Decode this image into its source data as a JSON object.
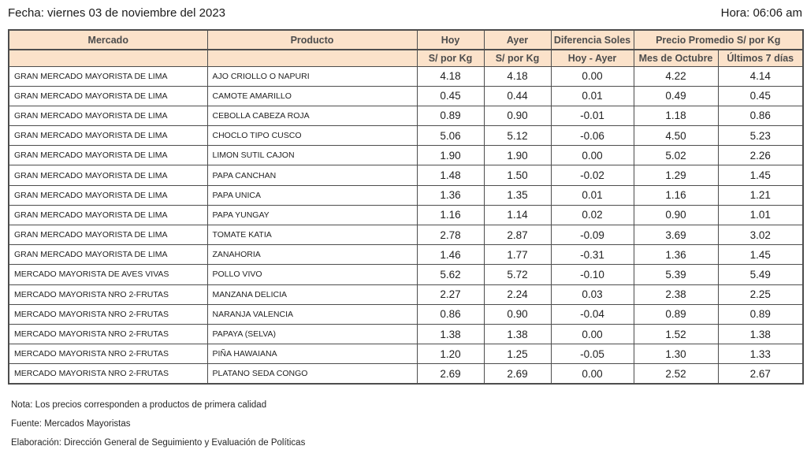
{
  "page": {
    "date_label": "Fecha: viernes 03 de noviembre del 2023",
    "time_label": "Hora: 06:06 am"
  },
  "colors": {
    "header_bg": "#FBE2CA",
    "table_border": "#4D4D4D",
    "header_text": "#4D4D4D"
  },
  "table": {
    "header": {
      "mercado": "Mercado",
      "producto": "Producto",
      "hoy": "Hoy",
      "ayer": "Ayer",
      "diferencia_soles": "Diferencia Soles",
      "precio_promedio": "Precio Promedio S/ por Kg"
    },
    "subheader": {
      "hoy_unit": "S/ por Kg",
      "ayer_unit": "S/ por Kg",
      "diferencia": "Hoy - Ayer",
      "mes_octubre": "Mes de Octubre",
      "ultimos_7_dias": "Últimos 7 días"
    },
    "rows": [
      {
        "mercado": "GRAN MERCADO MAYORISTA DE LIMA",
        "producto": "AJO CRIOLLO O NAPURI",
        "hoy": "4.18",
        "ayer": "4.18",
        "diferencia": "0.00",
        "mes_octubre": "4.22",
        "ultimos_7": "4.14"
      },
      {
        "mercado": "GRAN MERCADO MAYORISTA DE LIMA",
        "producto": "CAMOTE AMARILLO",
        "hoy": "0.45",
        "ayer": "0.44",
        "diferencia": "0.01",
        "mes_octubre": "0.49",
        "ultimos_7": "0.45"
      },
      {
        "mercado": "GRAN MERCADO MAYORISTA DE LIMA",
        "producto": "CEBOLLA CABEZA ROJA",
        "hoy": "0.89",
        "ayer": "0.90",
        "diferencia": "-0.01",
        "mes_octubre": "1.18",
        "ultimos_7": "0.86"
      },
      {
        "mercado": "GRAN MERCADO MAYORISTA DE LIMA",
        "producto": "CHOCLO TIPO CUSCO",
        "hoy": "5.06",
        "ayer": "5.12",
        "diferencia": "-0.06",
        "mes_octubre": "4.50",
        "ultimos_7": "5.23"
      },
      {
        "mercado": "GRAN MERCADO MAYORISTA DE LIMA",
        "producto": "LIMON SUTIL CAJON",
        "hoy": "1.90",
        "ayer": "1.90",
        "diferencia": "0.00",
        "mes_octubre": "5.02",
        "ultimos_7": "2.26"
      },
      {
        "mercado": "GRAN MERCADO MAYORISTA DE LIMA",
        "producto": "PAPA CANCHAN",
        "hoy": "1.48",
        "ayer": "1.50",
        "diferencia": "-0.02",
        "mes_octubre": "1.29",
        "ultimos_7": "1.45"
      },
      {
        "mercado": "GRAN MERCADO MAYORISTA DE LIMA",
        "producto": "PAPA UNICA",
        "hoy": "1.36",
        "ayer": "1.35",
        "diferencia": "0.01",
        "mes_octubre": "1.16",
        "ultimos_7": "1.21"
      },
      {
        "mercado": "GRAN MERCADO MAYORISTA DE LIMA",
        "producto": "PAPA YUNGAY",
        "hoy": "1.16",
        "ayer": "1.14",
        "diferencia": "0.02",
        "mes_octubre": "0.90",
        "ultimos_7": "1.01"
      },
      {
        "mercado": "GRAN MERCADO MAYORISTA DE LIMA",
        "producto": "TOMATE KATIA",
        "hoy": "2.78",
        "ayer": "2.87",
        "diferencia": "-0.09",
        "mes_octubre": "3.69",
        "ultimos_7": "3.02"
      },
      {
        "mercado": "GRAN MERCADO MAYORISTA DE LIMA",
        "producto": "ZANAHORIA",
        "hoy": "1.46",
        "ayer": "1.77",
        "diferencia": "-0.31",
        "mes_octubre": "1.36",
        "ultimos_7": "1.45"
      },
      {
        "mercado": "MERCADO MAYORISTA DE AVES VIVAS",
        "producto": "POLLO VIVO",
        "hoy": "5.62",
        "ayer": "5.72",
        "diferencia": "-0.10",
        "mes_octubre": "5.39",
        "ultimos_7": "5.49"
      },
      {
        "mercado": "MERCADO MAYORISTA NRO 2-FRUTAS",
        "producto": "MANZANA DELICIA",
        "hoy": "2.27",
        "ayer": "2.24",
        "diferencia": "0.03",
        "mes_octubre": "2.38",
        "ultimos_7": "2.25"
      },
      {
        "mercado": "MERCADO MAYORISTA NRO 2-FRUTAS",
        "producto": "NARANJA VALENCIA",
        "hoy": "0.86",
        "ayer": "0.90",
        "diferencia": "-0.04",
        "mes_octubre": "0.89",
        "ultimos_7": "0.89"
      },
      {
        "mercado": "MERCADO MAYORISTA NRO 2-FRUTAS",
        "producto": "PAPAYA (SELVA)",
        "hoy": "1.38",
        "ayer": "1.38",
        "diferencia": "0.00",
        "mes_octubre": "1.52",
        "ultimos_7": "1.38"
      },
      {
        "mercado": "MERCADO MAYORISTA NRO 2-FRUTAS",
        "producto": "PIÑA HAWAIANA",
        "hoy": "1.20",
        "ayer": "1.25",
        "diferencia": "-0.05",
        "mes_octubre": "1.30",
        "ultimos_7": "1.33"
      },
      {
        "mercado": "MERCADO MAYORISTA NRO 2-FRUTAS",
        "producto": "PLATANO SEDA CONGO",
        "hoy": "2.69",
        "ayer": "2.69",
        "diferencia": "0.00",
        "mes_octubre": "2.52",
        "ultimos_7": "2.67"
      }
    ]
  },
  "footer": {
    "nota": "Nota: Los precios corresponden a productos de primera calidad",
    "fuente": "Fuente: Mercados Mayoristas",
    "elaboracion": "Elaboración: Dirección General de Seguimiento y Evaluación de Políticas"
  }
}
